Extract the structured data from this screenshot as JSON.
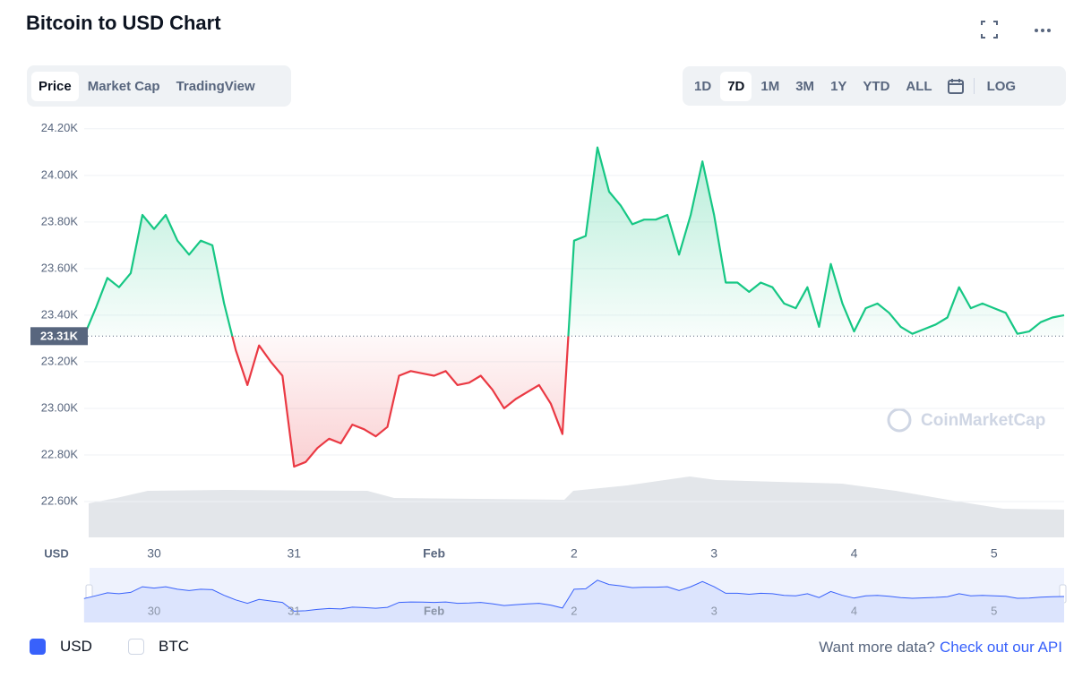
{
  "header": {
    "title": "Bitcoin to USD Chart"
  },
  "tabs": [
    "Price",
    "Market Cap",
    "TradingView"
  ],
  "ranges": [
    "1D",
    "7D",
    "1M",
    "3M",
    "1Y",
    "YTD",
    "ALL"
  ],
  "log": "LOG",
  "chart_data": {
    "type": "line",
    "categories": [
      null,
      null,
      null,
      null,
      null,
      null,
      "30",
      null,
      null,
      null,
      null,
      null,
      null,
      null,
      null,
      null,
      null,
      null,
      "31",
      null,
      null,
      null,
      null,
      null,
      null,
      null,
      null,
      null,
      null,
      null,
      "Feb",
      null,
      null,
      null,
      null,
      null,
      null,
      null,
      null,
      null,
      null,
      null,
      "2",
      null,
      null,
      null,
      null,
      null,
      null,
      null,
      null,
      null,
      null,
      null,
      "3",
      null,
      null,
      null,
      null,
      null,
      null,
      null,
      null,
      null,
      null,
      null,
      "4",
      null,
      null,
      null,
      null,
      null,
      null,
      null,
      null,
      null,
      null,
      null,
      "5",
      null,
      null,
      null,
      null,
      null,
      null
    ],
    "values": [
      23310,
      23430,
      23560,
      23520,
      23580,
      23830,
      23770,
      23830,
      23720,
      23660,
      23720,
      23700,
      23450,
      23250,
      23100,
      23270,
      23200,
      23140,
      22750,
      22770,
      22830,
      22870,
      22850,
      22930,
      22910,
      22880,
      22920,
      23140,
      23160,
      23150,
      23140,
      23160,
      23100,
      23110,
      23140,
      23080,
      23000,
      23040,
      23070,
      23100,
      23020,
      22890,
      23720,
      23740,
      24120,
      23930,
      23870,
      23790,
      23810,
      23810,
      23830,
      23660,
      23830,
      24060,
      23830,
      23540,
      23540,
      23500,
      23540,
      23520,
      23450,
      23430,
      23520,
      23350,
      23620,
      23450,
      23330,
      23430,
      23450,
      23410,
      23350,
      23320,
      23340,
      23360,
      23390,
      23520,
      23430,
      23450,
      23430,
      23410,
      23320,
      23330,
      23370,
      23390,
      23400
    ],
    "ylim": [
      22450,
      24230
    ],
    "yticks": [
      {
        "value": 22600,
        "label": "22.60K"
      },
      {
        "value": 22800,
        "label": "22.80K"
      },
      {
        "value": 23000,
        "label": "23.00K"
      },
      {
        "value": 23200,
        "label": "23.20K"
      },
      {
        "value": 23400,
        "label": "23.40K"
      },
      {
        "value": 23600,
        "label": "23.60K"
      },
      {
        "value": 23800,
        "label": "23.80K"
      },
      {
        "value": 24000,
        "label": "24.00K"
      },
      {
        "value": 24200,
        "label": "24.20K"
      }
    ],
    "reference": {
      "value": 23310,
      "label": "23.31K"
    },
    "currency_label": "USD",
    "watermark": "CoinMarketCap",
    "grid": true,
    "up_color": "#16c784",
    "down_color": "#ea3943",
    "navigator_color": "#3861fb"
  },
  "legend": [
    {
      "label": "USD",
      "checked": true
    },
    {
      "label": "BTC",
      "checked": false
    }
  ],
  "footer": {
    "text": "Want more data?",
    "link": "Check out our API"
  }
}
